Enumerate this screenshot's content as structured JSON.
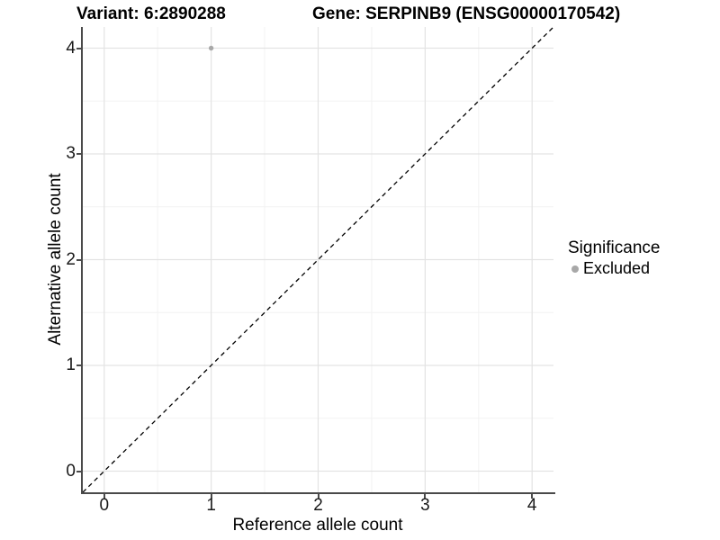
{
  "title": {
    "variant": "Variant: 6:2890288",
    "gene": "Gene: SERPINB9 (ENSG00000170542)"
  },
  "axes": {
    "x_label": "Reference allele count",
    "y_label": "Alternative allele count"
  },
  "legend": {
    "title": "Significance",
    "items": [
      {
        "label": "Excluded",
        "color": "#a8a8a8"
      }
    ]
  },
  "colors": {
    "background": "#ffffff",
    "major_gridline": "#e3e3e3",
    "minor_gridline": "#f2f2f2",
    "axis_line": "#4a4a4a",
    "reference_line": "#000000",
    "excluded_point": "#a8a8a8"
  },
  "chart_data": {
    "type": "scatter",
    "title": "Variant: 6:2890288   Gene: SERPINB9 (ENSG00000170542)",
    "xlabel": "Reference allele count",
    "ylabel": "Alternative allele count",
    "xlim": [
      -0.2,
      4.2
    ],
    "ylim": [
      -0.2,
      4.2
    ],
    "x_ticks": [
      0,
      1,
      2,
      3,
      4
    ],
    "y_ticks": [
      0,
      1,
      2,
      3,
      4
    ],
    "x_minor_ticks": [
      0.5,
      1.5,
      2.5,
      3.5
    ],
    "y_minor_ticks": [
      0.5,
      1.5,
      2.5,
      3.5
    ],
    "grid": true,
    "legend_position": "right",
    "reference_line": {
      "name": "identity-line",
      "style": "dashed",
      "from": [
        -0.2,
        -0.2
      ],
      "to": [
        4.2,
        4.2
      ],
      "color": "#000000"
    },
    "series": [
      {
        "name": "Excluded",
        "color": "#a8a8a8",
        "points": [
          {
            "x": 1,
            "y": 4
          }
        ]
      }
    ]
  }
}
